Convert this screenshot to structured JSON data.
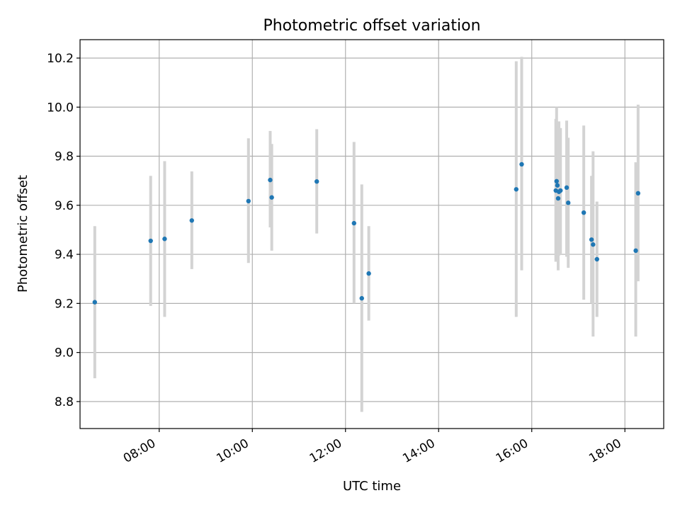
{
  "chart_data": {
    "type": "scatter",
    "title": "Photometric offset variation",
    "xlabel": "UTC time",
    "ylabel": "Photometric offset",
    "x_tick_labels": [
      "08:00",
      "10:00",
      "12:00",
      "14:00",
      "16:00",
      "18:00"
    ],
    "x_ticks": [
      "08:00",
      "10:00",
      "12:00",
      "14:00",
      "16:00",
      "18:00"
    ],
    "y_ticks": [
      8.8,
      9.0,
      9.2,
      9.4,
      9.6,
      9.8,
      10.0,
      10.2
    ],
    "xlim": [
      "06:18",
      "18:50"
    ],
    "ylim": [
      8.69,
      10.275
    ],
    "grid": true,
    "marker_color": "#1f77b4",
    "errorbar_color": "#d3d3d3",
    "points": [
      {
        "x": "06:37",
        "y": 9.205,
        "low": 8.895,
        "high": 9.515
      },
      {
        "x": "07:49",
        "y": 9.455,
        "low": 9.19,
        "high": 9.72
      },
      {
        "x": "08:07",
        "y": 9.463,
        "low": 9.145,
        "high": 9.78
      },
      {
        "x": "08:42",
        "y": 9.538,
        "low": 9.34,
        "high": 9.738
      },
      {
        "x": "09:55",
        "y": 9.617,
        "low": 9.365,
        "high": 9.873
      },
      {
        "x": "10:23",
        "y": 9.703,
        "low": 9.51,
        "high": 9.903
      },
      {
        "x": "10:25",
        "y": 9.632,
        "low": 9.415,
        "high": 9.85
      },
      {
        "x": "11:23",
        "y": 9.697,
        "low": 9.485,
        "high": 9.91
      },
      {
        "x": "12:11",
        "y": 9.527,
        "low": 9.2,
        "high": 9.858
      },
      {
        "x": "12:21",
        "y": 9.221,
        "low": 8.758,
        "high": 9.685
      },
      {
        "x": "12:30",
        "y": 9.322,
        "low": 9.13,
        "high": 9.515
      },
      {
        "x": "15:40",
        "y": 9.665,
        "low": 9.145,
        "high": 10.187
      },
      {
        "x": "15:47",
        "y": 9.767,
        "low": 9.335,
        "high": 10.205
      },
      {
        "x": "16:31",
        "y": 9.66,
        "low": 9.37,
        "high": 9.952
      },
      {
        "x": "16:32",
        "y": 9.698,
        "low": 9.42,
        "high": 10.0
      },
      {
        "x": "16:33",
        "y": 9.681,
        "low": 9.44,
        "high": 9.925
      },
      {
        "x": "16:34",
        "y": 9.628,
        "low": 9.335,
        "high": 9.925
      },
      {
        "x": "16:35",
        "y": 9.655,
        "low": 9.395,
        "high": 9.942
      },
      {
        "x": "16:37",
        "y": 9.66,
        "low": 9.4,
        "high": 9.915
      },
      {
        "x": "16:45",
        "y": 9.672,
        "low": 9.39,
        "high": 9.945
      },
      {
        "x": "16:47",
        "y": 9.61,
        "low": 9.345,
        "high": 9.875
      },
      {
        "x": "17:07",
        "y": 9.57,
        "low": 9.215,
        "high": 9.925
      },
      {
        "x": "17:17",
        "y": 9.46,
        "low": 9.2,
        "high": 9.72
      },
      {
        "x": "17:19",
        "y": 9.44,
        "low": 9.065,
        "high": 9.82
      },
      {
        "x": "17:24",
        "y": 9.38,
        "low": 9.145,
        "high": 9.615
      },
      {
        "x": "18:14",
        "y": 9.415,
        "low": 9.065,
        "high": 9.775
      },
      {
        "x": "18:17",
        "y": 9.649,
        "low": 9.29,
        "high": 10.01
      }
    ]
  }
}
